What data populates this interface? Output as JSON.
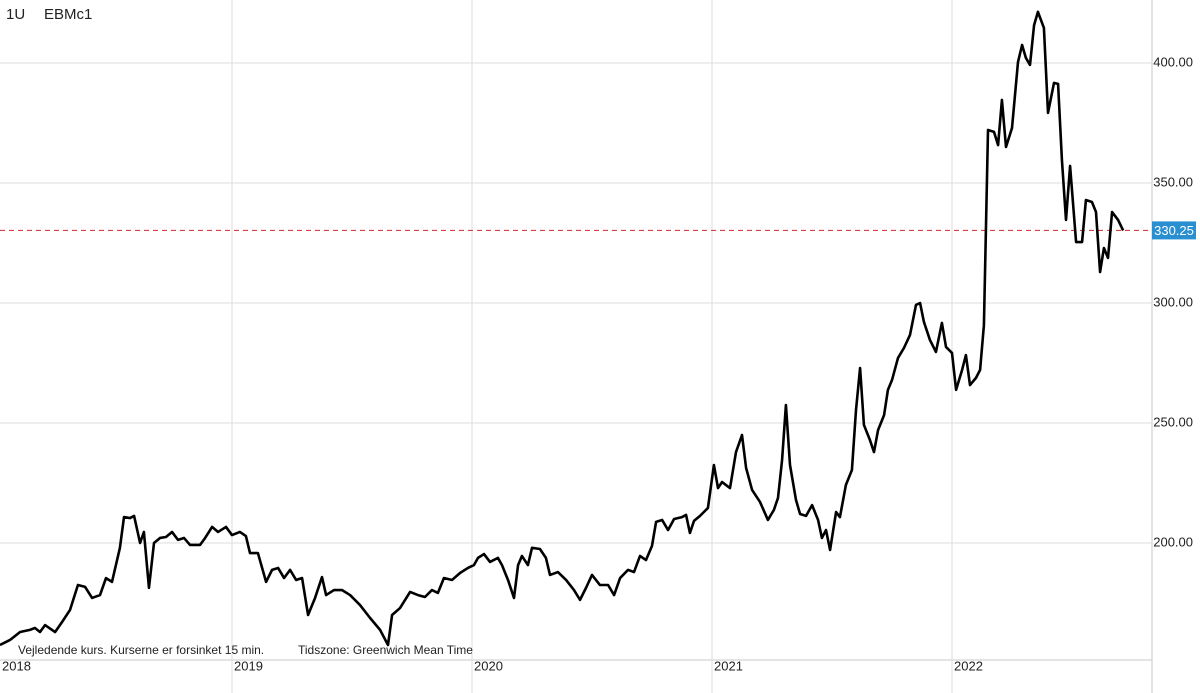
{
  "chart_data": {
    "type": "line",
    "ric_code": "1U",
    "title": "EBMc1",
    "footer_note": "Vejledende kurs. Kurserne er forsinket 15 min.",
    "timezone_note": "Tidszone: Greenwich Mean Time",
    "color": "#000000",
    "x": [
      2018.033,
      2018.075,
      2018.117,
      2018.158,
      2018.179,
      2018.2,
      2018.221,
      2018.263,
      2018.292,
      2018.325,
      2018.358,
      2018.388,
      2018.417,
      2018.45,
      2018.475,
      2018.5,
      2018.533,
      2018.55,
      2018.575,
      2018.592,
      2018.617,
      2018.633,
      2018.654,
      2018.675,
      2018.7,
      2018.725,
      2018.75,
      2018.775,
      2018.8,
      2018.825,
      2018.867,
      2018.888,
      2018.917,
      2018.942,
      2018.975,
      2019.0,
      2019.033,
      2019.058,
      2019.075,
      2019.108,
      2019.142,
      2019.167,
      2019.192,
      2019.217,
      2019.242,
      2019.267,
      2019.292,
      2019.317,
      2019.346,
      2019.375,
      2019.392,
      2019.425,
      2019.458,
      2019.492,
      2019.533,
      2019.575,
      2019.617,
      2019.65,
      2019.667,
      2019.7,
      2019.742,
      2019.775,
      2019.804,
      2019.833,
      2019.858,
      2019.883,
      2019.917,
      2019.95,
      2019.983,
      2020.008,
      2020.025,
      2020.05,
      2020.075,
      2020.108,
      2020.125,
      2020.15,
      2020.175,
      2020.192,
      2020.208,
      2020.233,
      2020.25,
      2020.283,
      2020.308,
      2020.325,
      2020.358,
      2020.392,
      2020.425,
      2020.45,
      2020.475,
      2020.5,
      2020.533,
      2020.567,
      2020.592,
      2020.617,
      2020.65,
      2020.675,
      2020.7,
      2020.725,
      2020.75,
      2020.767,
      2020.792,
      2020.817,
      2020.842,
      2020.875,
      2020.892,
      2020.908,
      2020.925,
      2020.95,
      2020.983,
      2021.008,
      2021.025,
      2021.042,
      2021.075,
      2021.1,
      2021.125,
      2021.142,
      2021.167,
      2021.2,
      2021.233,
      2021.258,
      2021.275,
      2021.292,
      2021.308,
      2021.325,
      2021.35,
      2021.367,
      2021.392,
      2021.417,
      2021.442,
      2021.458,
      2021.475,
      2021.492,
      2021.517,
      2021.533,
      2021.558,
      2021.583,
      2021.6,
      2021.617,
      2021.633,
      2021.658,
      2021.675,
      2021.692,
      2021.717,
      2021.733,
      2021.75,
      2021.775,
      2021.8,
      2021.825,
      2021.85,
      2021.867,
      2021.883,
      2021.908,
      2021.933,
      2021.958,
      2021.975,
      2022.0,
      2022.017,
      2022.042,
      2022.058,
      2022.075,
      2022.1,
      2022.117,
      2022.133,
      2022.15,
      2022.175,
      2022.192,
      2022.208,
      2022.225,
      2022.25,
      2022.275,
      2022.292,
      2022.308,
      2022.325,
      2022.342,
      2022.358,
      2022.383,
      2022.4,
      2022.425,
      2022.442,
      2022.458,
      2022.475,
      2022.492,
      2022.517,
      2022.542,
      2022.558,
      2022.583,
      2022.6,
      2022.617,
      2022.633,
      2022.65,
      2022.667,
      2022.692,
      2022.713
    ],
    "values": [
      157.5,
      159.6,
      162.9,
      163.8,
      164.6,
      162.9,
      165.8,
      162.9,
      167.1,
      172.1,
      182.5,
      181.7,
      177.1,
      178.3,
      185.4,
      183.8,
      198.0,
      210.8,
      210.4,
      211.3,
      200.0,
      204.6,
      181.3,
      200.0,
      202.1,
      202.5,
      204.6,
      201.3,
      202.1,
      199.2,
      199.2,
      202.1,
      206.7,
      204.6,
      206.7,
      203.3,
      204.6,
      202.9,
      195.8,
      195.8,
      183.8,
      188.8,
      189.6,
      185.4,
      188.8,
      184.6,
      185.4,
      170.0,
      177.1,
      185.8,
      178.3,
      180.4,
      180.4,
      178.3,
      174.2,
      168.8,
      163.8,
      157.5,
      170.0,
      172.9,
      179.6,
      178.3,
      177.5,
      180.4,
      179.2,
      185.4,
      184.6,
      187.5,
      189.6,
      190.8,
      193.8,
      195.4,
      192.1,
      193.8,
      190.8,
      184.6,
      177.1,
      190.8,
      194.6,
      190.8,
      198.0,
      197.5,
      193.8,
      186.7,
      187.9,
      184.6,
      180.4,
      176.3,
      181.3,
      186.7,
      182.5,
      182.5,
      178.3,
      185.4,
      188.8,
      187.9,
      194.6,
      192.9,
      198.8,
      208.8,
      209.6,
      205.4,
      210.0,
      210.8,
      211.7,
      204.2,
      209.2,
      211.3,
      214.6,
      232.5,
      222.9,
      225.4,
      222.9,
      237.9,
      245.0,
      231.3,
      222.1,
      217.1,
      209.6,
      213.8,
      218.8,
      234.6,
      257.5,
      232.5,
      217.9,
      212.1,
      211.3,
      215.8,
      209.6,
      202.1,
      205.4,
      197.1,
      212.9,
      210.8,
      224.2,
      230.4,
      255.4,
      272.9,
      249.2,
      242.9,
      237.9,
      247.1,
      253.3,
      263.8,
      267.9,
      277.1,
      281.3,
      286.7,
      299.2,
      300.0,
      292.1,
      284.6,
      279.6,
      291.7,
      281.7,
      279.2,
      263.8,
      272.1,
      278.3,
      265.8,
      268.8,
      272.1,
      290.8,
      372.1,
      371.3,
      365.8,
      384.6,
      365.0,
      372.9,
      400.4,
      407.5,
      402.1,
      399.2,
      415.8,
      421.3,
      414.6,
      379.2,
      391.7,
      391.3,
      359.6,
      334.6,
      357.1,
      325.4,
      325.4,
      342.9,
      342.1,
      337.9,
      312.9,
      322.9,
      318.8,
      337.9,
      334.6,
      330.25
    ],
    "last_price": 330.25,
    "last_price_color": "#2a8fd0",
    "last_line_color": "#d0272b",
    "xlim": [
      2018,
      2022.825
    ],
    "xticks": [
      2018,
      2019,
      2020,
      2021,
      2022
    ],
    "ylim": [
      151.25,
      426.25
    ],
    "yticks": [
      {
        "value": 200,
        "label": "200.00"
      },
      {
        "value": 250,
        "label": "250.00"
      },
      {
        "value": 300,
        "label": "300.00"
      },
      {
        "value": 350,
        "label": "350.00"
      },
      {
        "value": 400,
        "label": "400.00"
      }
    ],
    "grid": true
  }
}
